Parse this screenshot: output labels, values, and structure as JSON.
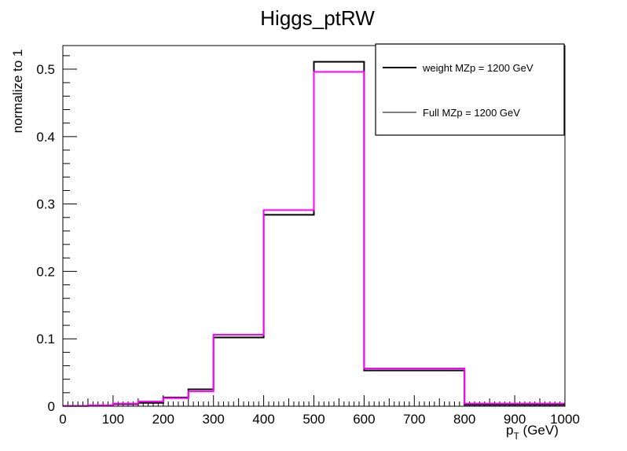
{
  "chart_data": {
    "type": "line",
    "title": "Higgs_ptRW",
    "xlabel_main": "p",
    "xlabel_sub": "T",
    "xlabel_unit": " (GeV)",
    "ylabel": "normalize to 1",
    "xlim": [
      0,
      1000
    ],
    "ylim": [
      0,
      0.535
    ],
    "grid": false,
    "legend_position": "top-right",
    "x_ticks": [
      0,
      100,
      200,
      300,
      400,
      500,
      600,
      700,
      800,
      900,
      1000
    ],
    "x_tick_labels": [
      "0",
      "100",
      "200",
      "300",
      "400",
      "500",
      "600",
      "700",
      "800",
      "900",
      "1000"
    ],
    "y_ticks": [
      0,
      0.1,
      0.2,
      0.3,
      0.4,
      0.5
    ],
    "y_tick_labels": [
      "0",
      "0.1",
      "0.2",
      "0.3",
      "0.4",
      "0.5"
    ],
    "bin_edges": [
      0,
      50,
      100,
      150,
      200,
      250,
      300,
      400,
      500,
      600,
      800,
      1000
    ],
    "series": [
      {
        "name": "weight MZp = 1200 GeV",
        "color": "#000000",
        "values": [
          0.0005,
          0.0012,
          0.003,
          0.005,
          0.013,
          0.025,
          0.102,
          0.284,
          0.511,
          0.053,
          0.002
        ]
      },
      {
        "name": "Full MZp = 1200 GeV",
        "color": "#ff00ff",
        "values": [
          0.0005,
          0.0015,
          0.004,
          0.007,
          0.012,
          0.022,
          0.106,
          0.291,
          0.496,
          0.056,
          0.004
        ]
      }
    ]
  }
}
